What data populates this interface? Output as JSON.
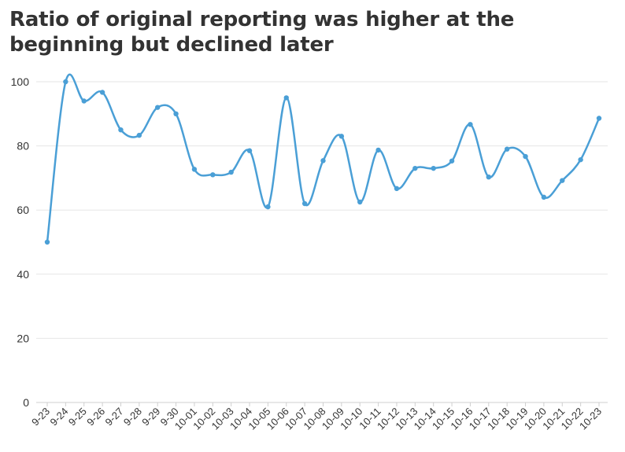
{
  "chart_data": {
    "type": "line",
    "title": "Ratio of original reporting was higher at the beginning but declined later",
    "xlabel": "",
    "ylabel": "",
    "ylim": [
      0,
      100
    ],
    "yticks": [
      0,
      20,
      40,
      60,
      80,
      100
    ],
    "grid": true,
    "line_color": "#4a9fd6",
    "categories": [
      "9-23",
      "9-24",
      "9-25",
      "9-26",
      "9-27",
      "9-28",
      "9-29",
      "9-30",
      "10-01",
      "10-02",
      "10-03",
      "10-04",
      "10-05",
      "10-06",
      "10-07",
      "10-08",
      "10-09",
      "10-10",
      "10-11",
      "10-12",
      "10-13",
      "10-14",
      "10-15",
      "10-16",
      "10-17",
      "10-18",
      "10-19",
      "10-20",
      "10-21",
      "10-22",
      "10-23"
    ],
    "series": [
      {
        "values": [
          50,
          100,
          94,
          96.7,
          85,
          83.3,
          92,
          90,
          72.7,
          71,
          71.8,
          78.5,
          61,
          95,
          62,
          75.4,
          83,
          62.5,
          78.7,
          66.7,
          73,
          73,
          75.3,
          86.7,
          70.3,
          79,
          76.7,
          64,
          69.2,
          75.7,
          88.6
        ]
      }
    ]
  }
}
